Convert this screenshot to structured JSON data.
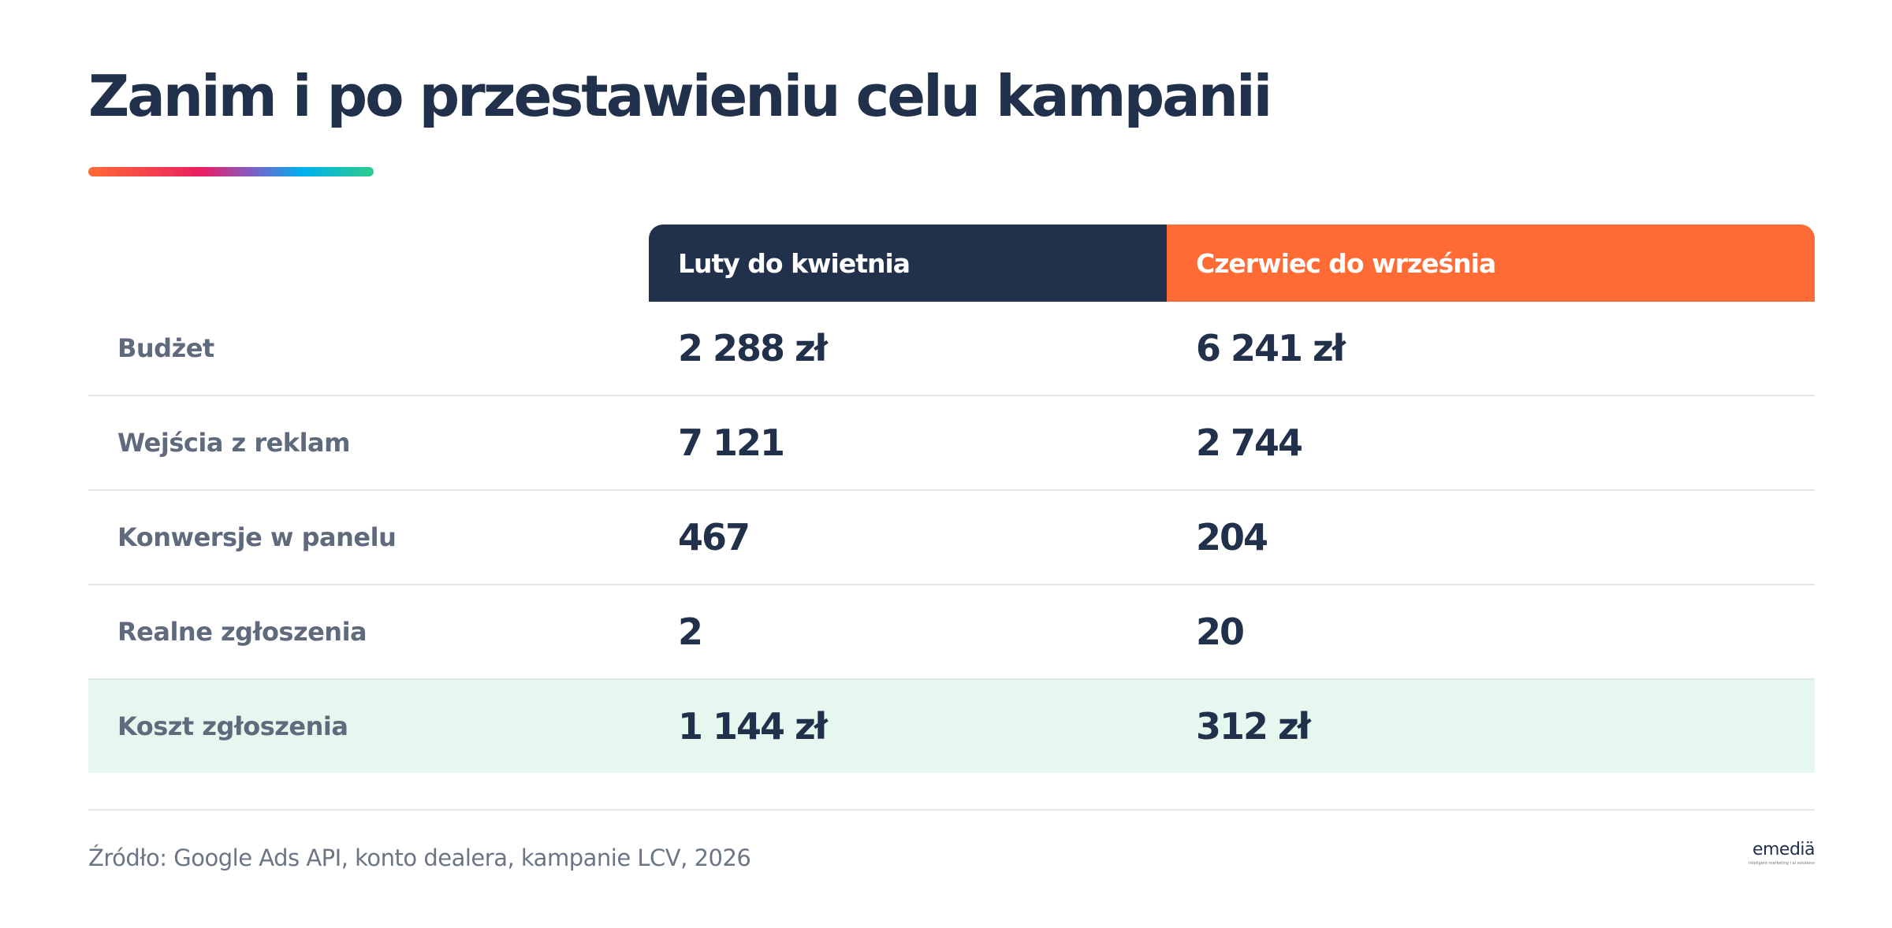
{
  "title": "Zanim i po przestawieniu celu kampanii",
  "accent_gradient": [
    "#ff6b35",
    "#e91e63",
    "#7b61c9",
    "#00b0f0",
    "#2ecc8a"
  ],
  "columns": [
    {
      "label": "Luty do kwietnia",
      "color": "#22314b"
    },
    {
      "label": "Czerwiec do września",
      "color": "#ff6b35"
    }
  ],
  "rows": [
    {
      "label": "Budżet",
      "a": "2 288 zł",
      "b": "6 241 zł"
    },
    {
      "label": "Wejścia z reklam",
      "a": "7 121",
      "b": "2 744"
    },
    {
      "label": "Konwersje w panelu",
      "a": "467",
      "b": "204"
    },
    {
      "label": "Realne zgłoszenia",
      "a": "2",
      "b": "20"
    },
    {
      "label": "Koszt zgłoszenia",
      "a": "1 144 zł",
      "b": "312 zł",
      "highlight_color": "#e6f7ef"
    }
  ],
  "source": "Źródło: Google Ads API, konto dealera, kampanie LCV, 2026",
  "logo": {
    "word": "emediä",
    "tagline": "inteligent marketing i ai solutions"
  }
}
